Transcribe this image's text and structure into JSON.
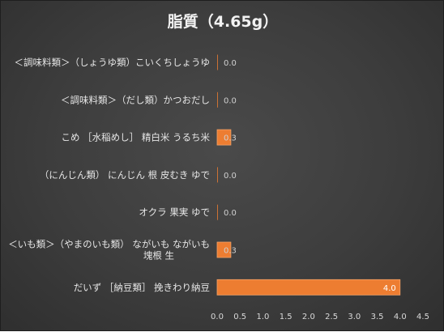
{
  "chart_data": {
    "type": "bar",
    "orientation": "horizontal",
    "title": "脂質（4.65g）",
    "categories": [
      "＜調味料類＞（しょうゆ類）こいくちしょうゆ",
      "＜調味料類＞（だし類）かつおだし",
      "こめ ［水稲めし］ 精白米 うるち米",
      "（にんじん類） にんじん 根 皮むき ゆで",
      "オクラ 果実 ゆで",
      "＜いも類＞（やまのいも類） ながいも ながいも 塊根 生",
      "だいず ［納豆類］ 挽きわり納豆"
    ],
    "category_lines": [
      [
        "＜調味料類＞（しょうゆ類）こいくちしょうゆ"
      ],
      [
        "＜調味料類＞（だし類）かつおだし"
      ],
      [
        "こめ ［水稲めし］ 精白米 うるち米"
      ],
      [
        "（にんじん類） にんじん 根 皮むき ゆで"
      ],
      [
        "オクラ 果実 ゆで"
      ],
      [
        "＜いも類＞（やまのいも類） ながいも ながいも",
        "塊根 生"
      ],
      [
        "だいず ［納豆類］ 挽きわり納豆"
      ]
    ],
    "values": [
      0.0,
      0.0,
      0.3,
      0.0,
      0.0,
      0.3,
      4.0
    ],
    "value_labels": [
      "0.0",
      "0.0",
      "0.3",
      "0.0",
      "0.0",
      "0.3",
      "4.0"
    ],
    "xlim": [
      0,
      4.5
    ],
    "xticks": [
      "0.0",
      "0.5",
      "1.0",
      "1.5",
      "2.0",
      "2.5",
      "3.0",
      "3.5",
      "4.0",
      "4.5"
    ],
    "xlabel": "",
    "ylabel": "",
    "grid": false,
    "legend": "none",
    "colors": {
      "bar_fill": "#ed7d31",
      "bar_stroke": "#f4a46a",
      "background": "#404040",
      "text": "#e6e6e6"
    }
  }
}
